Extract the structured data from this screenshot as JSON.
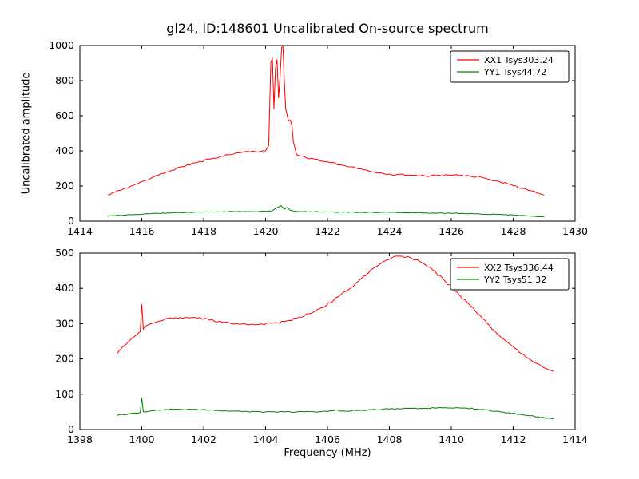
{
  "figure": {
    "title": "gl24, ID:148601 Uncalibrated On-source spectrum",
    "xlabel": "Frequency (MHz)",
    "ylabel": "Uncalibrated amplitude"
  },
  "chart_data": [
    {
      "type": "line",
      "title": "",
      "axes": {
        "xlim": [
          1414,
          1430
        ],
        "ylim": [
          0,
          1000
        ],
        "xticks": [
          1414,
          1416,
          1418,
          1420,
          1422,
          1424,
          1426,
          1428,
          1430
        ],
        "yticks": [
          0,
          200,
          400,
          600,
          800,
          1000
        ],
        "grid": false
      },
      "legend": {
        "position": "upper right",
        "entries": [
          "XX1 Tsys303.24",
          "YY1 Tsys44.72"
        ]
      },
      "series": [
        {
          "name": "XX1 Tsys303.24",
          "color": "#ff0000",
          "noise": 5,
          "x": [
            1414.9,
            1415.3,
            1415.8,
            1416.3,
            1416.8,
            1417.3,
            1417.8,
            1418.3,
            1418.8,
            1419.2,
            1419.5,
            1419.8,
            1420.0,
            1420.1,
            1420.17,
            1420.22,
            1420.27,
            1420.32,
            1420.37,
            1420.42,
            1420.47,
            1420.52,
            1420.56,
            1420.6,
            1420.65,
            1420.7,
            1420.75,
            1420.8,
            1420.85,
            1420.9,
            1421.0,
            1421.1,
            1421.3,
            1421.6,
            1422.0,
            1422.5,
            1423.0,
            1423.5,
            1424.0,
            1424.5,
            1425.0,
            1425.5,
            1426.0,
            1426.5,
            1427.0,
            1427.5,
            1428.0,
            1428.5,
            1429.0
          ],
          "y": [
            150,
            175,
            210,
            245,
            280,
            310,
            335,
            358,
            378,
            390,
            395,
            395,
            400,
            430,
            900,
            930,
            640,
            870,
            920,
            700,
            830,
            990,
            1000,
            820,
            640,
            600,
            570,
            575,
            545,
            450,
            380,
            370,
            362,
            352,
            338,
            318,
            298,
            280,
            268,
            262,
            258,
            259,
            262,
            260,
            248,
            228,
            202,
            175,
            148
          ]
        },
        {
          "name": "YY1 Tsys44.72",
          "color": "#008000",
          "noise": 2,
          "x": [
            1414.9,
            1415.5,
            1416.2,
            1417.0,
            1418.0,
            1419.0,
            1419.8,
            1420.2,
            1420.35,
            1420.5,
            1420.6,
            1420.7,
            1420.8,
            1420.95,
            1421.2,
            1422.0,
            1423.0,
            1424.0,
            1425.0,
            1426.0,
            1426.8,
            1427.5,
            1428.2,
            1429.0
          ],
          "y": [
            28,
            35,
            42,
            48,
            52,
            54,
            55,
            58,
            75,
            88,
            68,
            78,
            62,
            56,
            54,
            52,
            50,
            50,
            48,
            45,
            42,
            38,
            32,
            24
          ]
        }
      ]
    },
    {
      "type": "line",
      "title": "",
      "axes": {
        "xlim": [
          1398,
          1414
        ],
        "ylim": [
          0,
          500
        ],
        "xticks": [
          1398,
          1400,
          1402,
          1404,
          1406,
          1408,
          1410,
          1412,
          1414
        ],
        "yticks": [
          0,
          100,
          200,
          300,
          400,
          500
        ],
        "grid": false
      },
      "legend": {
        "position": "upper right",
        "entries": [
          "XX2 Tsys336.44",
          "YY2 Tsys51.32"
        ]
      },
      "series": [
        {
          "name": "XX2 Tsys336.44",
          "color": "#ff0000",
          "noise": 3,
          "x": [
            1399.2,
            1399.5,
            1399.8,
            1399.95,
            1400.0,
            1400.05,
            1400.1,
            1400.3,
            1400.6,
            1401.0,
            1401.4,
            1401.8,
            1402.2,
            1402.6,
            1403.0,
            1403.4,
            1403.8,
            1404.2,
            1404.6,
            1405.0,
            1405.4,
            1405.8,
            1406.2,
            1406.6,
            1407.0,
            1407.4,
            1407.8,
            1408.1,
            1408.4,
            1408.7,
            1409.0,
            1409.4,
            1409.8,
            1410.2,
            1410.6,
            1411.0,
            1411.4,
            1411.8,
            1412.2,
            1412.6,
            1413.0,
            1413.3
          ],
          "y": [
            215,
            242,
            266,
            278,
            355,
            285,
            292,
            300,
            308,
            315,
            318,
            316,
            310,
            304,
            299,
            297,
            298,
            301,
            306,
            315,
            328,
            345,
            366,
            392,
            420,
            452,
            475,
            488,
            491,
            486,
            475,
            452,
            420,
            388,
            352,
            315,
            280,
            248,
            218,
            195,
            175,
            165
          ]
        },
        {
          "name": "YY2 Tsys51.32",
          "color": "#008000",
          "noise": 1.5,
          "x": [
            1399.2,
            1399.6,
            1399.95,
            1400.0,
            1400.05,
            1400.3,
            1400.7,
            1401.1,
            1401.6,
            1402.2,
            1403.0,
            1404.0,
            1405.0,
            1406.0,
            1406.3,
            1406.4,
            1407.0,
            1408.0,
            1409.0,
            1409.8,
            1410.4,
            1411.0,
            1411.6,
            1412.2,
            1412.8,
            1413.3
          ],
          "y": [
            40,
            45,
            48,
            90,
            50,
            53,
            56,
            57,
            57,
            55,
            52,
            50,
            50,
            51,
            56,
            52,
            54,
            58,
            60,
            62,
            61,
            57,
            50,
            43,
            36,
            30
          ]
        }
      ]
    }
  ]
}
